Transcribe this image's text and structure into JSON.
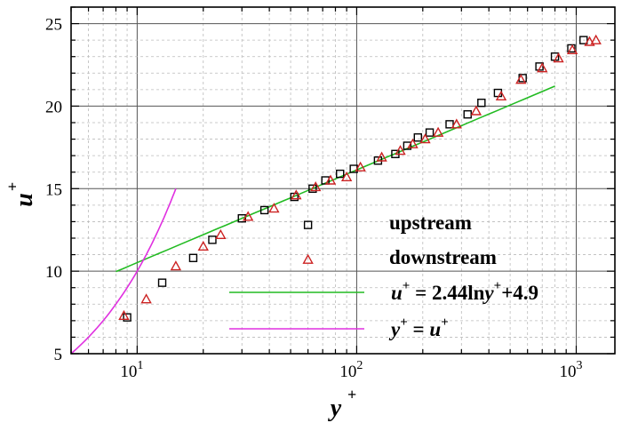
{
  "chart_data": {
    "type": "scatter",
    "x_scale": "log",
    "xlim": [
      5,
      1500
    ],
    "ylim": [
      5,
      26
    ],
    "xlabel": {
      "base": "y",
      "sup": "+"
    },
    "ylabel": {
      "base": "u",
      "sup": "+"
    },
    "x_ticks": [
      {
        "value": 10,
        "base": "10",
        "exp": "1"
      },
      {
        "value": 100,
        "base": "10",
        "exp": "2"
      },
      {
        "value": 1000,
        "base": "10",
        "exp": "3"
      }
    ],
    "y_ticks": [
      "5",
      "10",
      "15",
      "20",
      "25"
    ],
    "grid": true,
    "series": [
      {
        "name": "upstream",
        "marker": "square",
        "color": "#000000",
        "points": [
          [
            9,
            7.2
          ],
          [
            13,
            9.3
          ],
          [
            18,
            10.8
          ],
          [
            22,
            11.9
          ],
          [
            30,
            13.2
          ],
          [
            38,
            13.7
          ],
          [
            52,
            14.5
          ],
          [
            63,
            15.0
          ],
          [
            60,
            12.8
          ],
          [
            72,
            15.5
          ],
          [
            84,
            15.9
          ],
          [
            97,
            16.2
          ],
          [
            125,
            16.7
          ],
          [
            150,
            17.1
          ],
          [
            170,
            17.6
          ],
          [
            190,
            18.1
          ],
          [
            215,
            18.4
          ],
          [
            265,
            18.9
          ],
          [
            320,
            19.5
          ],
          [
            370,
            20.2
          ],
          [
            440,
            20.8
          ],
          [
            570,
            21.7
          ],
          [
            680,
            22.4
          ],
          [
            800,
            23.0
          ],
          [
            950,
            23.5
          ],
          [
            1080,
            24.0
          ]
        ]
      },
      {
        "name": "downstream",
        "marker": "triangle",
        "color": "#cc2222",
        "points": [
          [
            8.7,
            7.3
          ],
          [
            11,
            8.3
          ],
          [
            15,
            10.3
          ],
          [
            20,
            11.5
          ],
          [
            24,
            12.2
          ],
          [
            32,
            13.3
          ],
          [
            42,
            13.8
          ],
          [
            53,
            14.6
          ],
          [
            60,
            10.7
          ],
          [
            65,
            15.1
          ],
          [
            76,
            15.5
          ],
          [
            90,
            15.7
          ],
          [
            104,
            16.3
          ],
          [
            130,
            16.9
          ],
          [
            158,
            17.3
          ],
          [
            180,
            17.7
          ],
          [
            205,
            18.0
          ],
          [
            235,
            18.4
          ],
          [
            285,
            18.9
          ],
          [
            350,
            19.7
          ],
          [
            455,
            20.6
          ],
          [
            560,
            21.6
          ],
          [
            700,
            22.3
          ],
          [
            830,
            22.9
          ],
          [
            960,
            23.4
          ],
          [
            1150,
            23.9
          ],
          [
            1230,
            24.0
          ]
        ]
      }
    ],
    "lines": [
      {
        "label": "u+ = 2.44lny+ + 4.9",
        "color": "#22bb22",
        "kappa_inv": 2.44,
        "B": 4.9,
        "x_range": [
          8,
          800
        ]
      },
      {
        "label": "y+ = u+",
        "color": "#e030e0",
        "x_range": [
          5,
          15
        ]
      }
    ],
    "legend": {
      "placement": "bottom-right",
      "upstream": "upstream",
      "downstream": "downstream",
      "log_law": {
        "u": "u",
        "plus": "+",
        "eq": " = 2.44ln",
        "y": "y",
        "tail": "+4.9"
      },
      "linear": {
        "y": "y",
        "plus": "+",
        "eq": " = ",
        "u": "u"
      }
    }
  }
}
